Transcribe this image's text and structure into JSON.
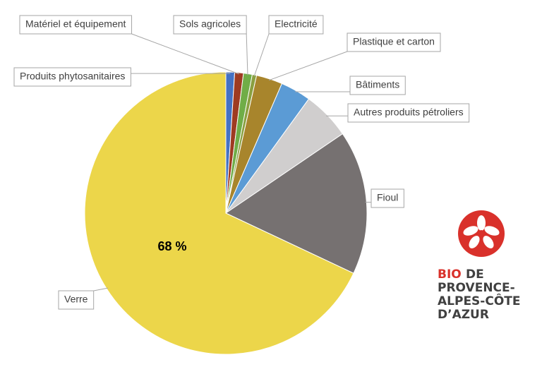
{
  "chart_data": {
    "type": "pie",
    "categories": [
      "Produits phytosanitaires",
      "Matériel et équipement",
      "Sols agricoles",
      "Electricité",
      "Plastique et carton",
      "Bâtiments",
      "Autres produits pétroliers",
      "Fioul",
      "Verre"
    ],
    "values": [
      1,
      1,
      1,
      0.5,
      3,
      3.5,
      5.5,
      16.5,
      68
    ],
    "value_labels": [
      null,
      null,
      null,
      null,
      null,
      null,
      null,
      null,
      "68 %"
    ],
    "colors": [
      "#4472c4",
      "#9e3b22",
      "#70ad47",
      "#8aa040",
      "#a8852c",
      "#5b9bd5",
      "#d0cece",
      "#767171",
      "#ecd64a"
    ]
  },
  "logo": {
    "lines": [
      "BIO",
      "DE",
      "PROVENCE-",
      "ALPES-CÔTE",
      "D’AZUR"
    ]
  }
}
